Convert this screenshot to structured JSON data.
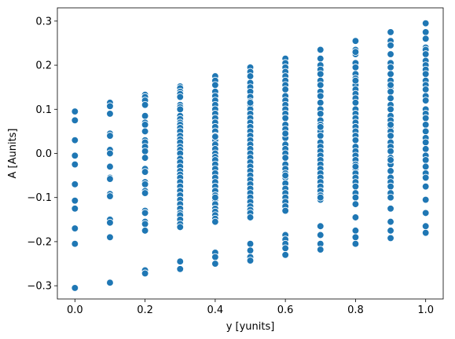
{
  "chart_data": {
    "type": "scatter",
    "xlabel": "y [yunits]",
    "ylabel": "A [Aunits]",
    "xlim": [
      -0.05,
      1.05
    ],
    "ylim": [
      -0.33,
      0.33
    ],
    "xticks": [
      0.0,
      0.2,
      0.4,
      0.6,
      0.8,
      1.0
    ],
    "xtick_labels": [
      "0.0",
      "0.2",
      "0.4",
      "0.6",
      "0.8",
      "1.0"
    ],
    "yticks": [
      -0.3,
      -0.2,
      -0.1,
      0.0,
      0.1,
      0.2,
      0.3
    ],
    "ytick_labels": [
      "−0.3",
      "−0.2",
      "−0.1",
      "0.0",
      "0.1",
      "0.2",
      "0.3"
    ],
    "grid": false,
    "marker_color": "#1f77b4",
    "marker_edge_color": "#ffffff",
    "x": [
      0.0,
      0.0,
      0.0,
      0.0,
      0.0,
      0.0,
      0.0,
      0.0,
      0.0,
      0.0,
      0.0,
      0.1,
      0.1,
      0.1,
      0.1,
      0.1,
      0.1,
      0.1,
      0.1,
      0.1,
      0.1,
      0.1,
      0.1,
      0.1,
      0.1,
      0.1,
      0.1,
      0.2,
      0.2,
      0.2,
      0.2,
      0.2,
      0.2,
      0.2,
      0.2,
      0.2,
      0.2,
      0.2,
      0.2,
      0.2,
      0.2,
      0.2,
      0.2,
      0.2,
      0.2,
      0.2,
      0.2,
      0.2,
      0.2,
      0.2,
      0.2,
      0.2,
      0.2,
      0.3,
      0.3,
      0.3,
      0.3,
      0.3,
      0.3,
      0.3,
      0.3,
      0.3,
      0.3,
      0.3,
      0.3,
      0.3,
      0.3,
      0.3,
      0.3,
      0.3,
      0.3,
      0.3,
      0.3,
      0.3,
      0.3,
      0.3,
      0.3,
      0.3,
      0.3,
      0.3,
      0.3,
      0.3,
      0.3,
      0.3,
      0.3,
      0.3,
      0.3,
      0.3,
      0.3,
      0.3,
      0.3,
      0.3,
      0.3,
      0.4,
      0.4,
      0.4,
      0.4,
      0.4,
      0.4,
      0.4,
      0.4,
      0.4,
      0.4,
      0.4,
      0.4,
      0.4,
      0.4,
      0.4,
      0.4,
      0.4,
      0.4,
      0.4,
      0.4,
      0.4,
      0.4,
      0.4,
      0.4,
      0.4,
      0.4,
      0.4,
      0.4,
      0.4,
      0.4,
      0.4,
      0.4,
      0.4,
      0.4,
      0.4,
      0.4,
      0.4,
      0.4,
      0.4,
      0.4,
      0.5,
      0.5,
      0.5,
      0.5,
      0.5,
      0.5,
      0.5,
      0.5,
      0.5,
      0.5,
      0.5,
      0.5,
      0.5,
      0.5,
      0.5,
      0.5,
      0.5,
      0.5,
      0.5,
      0.5,
      0.5,
      0.5,
      0.5,
      0.5,
      0.5,
      0.5,
      0.5,
      0.5,
      0.5,
      0.5,
      0.5,
      0.5,
      0.5,
      0.5,
      0.5,
      0.5,
      0.5,
      0.5,
      0.5,
      0.5,
      0.6,
      0.6,
      0.6,
      0.6,
      0.6,
      0.6,
      0.6,
      0.6,
      0.6,
      0.6,
      0.6,
      0.6,
      0.6,
      0.6,
      0.6,
      0.6,
      0.6,
      0.6,
      0.6,
      0.6,
      0.6,
      0.6,
      0.6,
      0.6,
      0.6,
      0.6,
      0.6,
      0.6,
      0.6,
      0.6,
      0.6,
      0.6,
      0.6,
      0.6,
      0.6,
      0.6,
      0.6,
      0.6,
      0.6,
      0.6,
      0.7,
      0.7,
      0.7,
      0.7,
      0.7,
      0.7,
      0.7,
      0.7,
      0.7,
      0.7,
      0.7,
      0.7,
      0.7,
      0.7,
      0.7,
      0.7,
      0.7,
      0.7,
      0.7,
      0.7,
      0.7,
      0.7,
      0.7,
      0.7,
      0.7,
      0.7,
      0.7,
      0.7,
      0.7,
      0.7,
      0.7,
      0.7,
      0.7,
      0.7,
      0.7,
      0.7,
      0.8,
      0.8,
      0.8,
      0.8,
      0.8,
      0.8,
      0.8,
      0.8,
      0.8,
      0.8,
      0.8,
      0.8,
      0.8,
      0.8,
      0.8,
      0.8,
      0.8,
      0.8,
      0.8,
      0.8,
      0.8,
      0.8,
      0.8,
      0.8,
      0.8,
      0.8,
      0.8,
      0.8,
      0.8,
      0.8,
      0.8,
      0.8,
      0.8,
      0.8,
      0.8,
      0.8,
      0.8,
      0.8,
      0.8,
      0.8,
      0.9,
      0.9,
      0.9,
      0.9,
      0.9,
      0.9,
      0.9,
      0.9,
      0.9,
      0.9,
      0.9,
      0.9,
      0.9,
      0.9,
      0.9,
      0.9,
      0.9,
      0.9,
      0.9,
      0.9,
      0.9,
      0.9,
      0.9,
      0.9,
      0.9,
      0.9,
      0.9,
      0.9,
      0.9,
      0.9,
      0.9,
      0.9,
      0.9,
      0.9,
      0.9,
      0.9,
      1.0,
      1.0,
      1.0,
      1.0,
      1.0,
      1.0,
      1.0,
      1.0,
      1.0,
      1.0,
      1.0,
      1.0,
      1.0,
      1.0,
      1.0,
      1.0,
      1.0,
      1.0,
      1.0,
      1.0,
      1.0,
      1.0,
      1.0,
      1.0,
      1.0,
      1.0,
      1.0,
      1.0,
      1.0,
      1.0,
      1.0,
      1.0,
      1.0
    ],
    "y": [
      0.095,
      0.075,
      0.03,
      -0.005,
      -0.025,
      -0.07,
      -0.107,
      -0.125,
      -0.17,
      -0.205,
      -0.305,
      0.115,
      0.107,
      0.09,
      0.045,
      0.04,
      0.008,
      0.0,
      -0.03,
      -0.055,
      -0.058,
      -0.092,
      -0.097,
      -0.15,
      -0.157,
      -0.19,
      -0.293,
      0.133,
      0.128,
      0.12,
      0.11,
      0.085,
      0.07,
      0.065,
      0.05,
      0.03,
      0.025,
      0.015,
      0.005,
      -0.01,
      -0.035,
      -0.042,
      -0.065,
      -0.07,
      -0.085,
      -0.09,
      -0.13,
      -0.135,
      -0.155,
      -0.16,
      -0.175,
      -0.265,
      -0.272,
      0.152,
      0.148,
      0.14,
      0.135,
      0.128,
      0.11,
      0.105,
      0.1,
      0.085,
      0.078,
      0.07,
      0.065,
      0.058,
      0.05,
      0.04,
      0.032,
      0.025,
      0.015,
      0.008,
      0.0,
      -0.012,
      -0.02,
      -0.03,
      -0.04,
      -0.048,
      -0.055,
      -0.065,
      -0.075,
      -0.085,
      -0.095,
      -0.105,
      -0.115,
      -0.125,
      -0.135,
      -0.14,
      -0.15,
      -0.16,
      -0.167,
      -0.245,
      -0.262,
      0.175,
      0.165,
      0.155,
      0.14,
      0.13,
      0.12,
      0.11,
      0.1,
      0.09,
      0.08,
      0.07,
      0.06,
      0.05,
      0.04,
      0.03,
      0.02,
      0.01,
      0.0,
      -0.008,
      -0.015,
      -0.025,
      -0.035,
      -0.045,
      -0.055,
      -0.065,
      -0.075,
      -0.085,
      -0.095,
      -0.105,
      -0.115,
      -0.125,
      -0.132,
      -0.14,
      -0.148,
      -0.155,
      -0.225,
      -0.235,
      -0.25,
      -0.1,
      0.038,
      0.195,
      0.185,
      0.175,
      0.16,
      0.15,
      0.14,
      0.128,
      0.118,
      0.11,
      0.1,
      0.09,
      0.08,
      0.07,
      0.06,
      0.05,
      0.04,
      0.03,
      0.02,
      0.01,
      0.0,
      -0.01,
      -0.02,
      -0.03,
      -0.04,
      -0.05,
      -0.06,
      -0.07,
      -0.08,
      -0.09,
      -0.1,
      -0.11,
      -0.12,
      -0.128,
      -0.135,
      -0.145,
      -0.205,
      -0.22,
      -0.235,
      -0.243,
      0.115,
      0.215,
      0.205,
      0.195,
      0.185,
      0.175,
      0.165,
      0.155,
      0.145,
      0.13,
      0.12,
      0.11,
      0.1,
      0.09,
      0.08,
      0.065,
      0.055,
      0.045,
      0.035,
      0.02,
      0.01,
      0.0,
      -0.01,
      -0.025,
      -0.035,
      -0.045,
      -0.055,
      -0.068,
      -0.08,
      -0.09,
      -0.1,
      -0.11,
      -0.12,
      -0.13,
      -0.185,
      -0.195,
      -0.205,
      -0.215,
      -0.23,
      0.045,
      -0.05,
      0.235,
      0.215,
      0.2,
      0.19,
      0.18,
      0.165,
      0.155,
      0.14,
      0.13,
      0.115,
      0.1,
      0.09,
      0.075,
      0.065,
      0.05,
      0.04,
      0.025,
      0.015,
      0.005,
      -0.005,
      -0.015,
      -0.025,
      -0.035,
      -0.045,
      -0.055,
      -0.065,
      -0.075,
      -0.085,
      -0.095,
      -0.105,
      -0.165,
      -0.185,
      -0.205,
      -0.218,
      0.06,
      -0.1,
      0.255,
      0.235,
      0.225,
      0.205,
      0.195,
      0.18,
      0.17,
      0.155,
      0.145,
      0.135,
      0.125,
      0.115,
      0.1,
      0.09,
      0.08,
      0.07,
      0.06,
      0.05,
      0.04,
      0.03,
      0.015,
      0.005,
      -0.005,
      -0.015,
      -0.025,
      -0.035,
      -0.045,
      -0.055,
      -0.065,
      -0.075,
      -0.09,
      -0.1,
      -0.115,
      -0.145,
      -0.175,
      -0.19,
      -0.205,
      0.23,
      0.165,
      -0.03,
      0.275,
      0.255,
      0.245,
      0.225,
      0.205,
      0.195,
      0.18,
      0.165,
      0.15,
      0.14,
      0.125,
      0.11,
      0.1,
      0.085,
      0.075,
      0.06,
      0.05,
      0.04,
      0.025,
      0.015,
      0.005,
      -0.01,
      -0.025,
      -0.04,
      -0.055,
      -0.065,
      -0.075,
      -0.09,
      -0.1,
      -0.125,
      -0.155,
      -0.175,
      -0.192,
      0.155,
      -0.015,
      0.065,
      0.295,
      0.275,
      0.26,
      0.24,
      0.235,
      0.225,
      0.21,
      0.2,
      0.19,
      0.18,
      0.165,
      0.155,
      0.145,
      0.13,
      0.12,
      0.1,
      0.09,
      0.08,
      0.065,
      0.05,
      0.035,
      0.025,
      0.01,
      -0.005,
      -0.015,
      -0.03,
      -0.045,
      -0.055,
      -0.075,
      -0.105,
      -0.135,
      -0.165,
      -0.18
    ]
  }
}
